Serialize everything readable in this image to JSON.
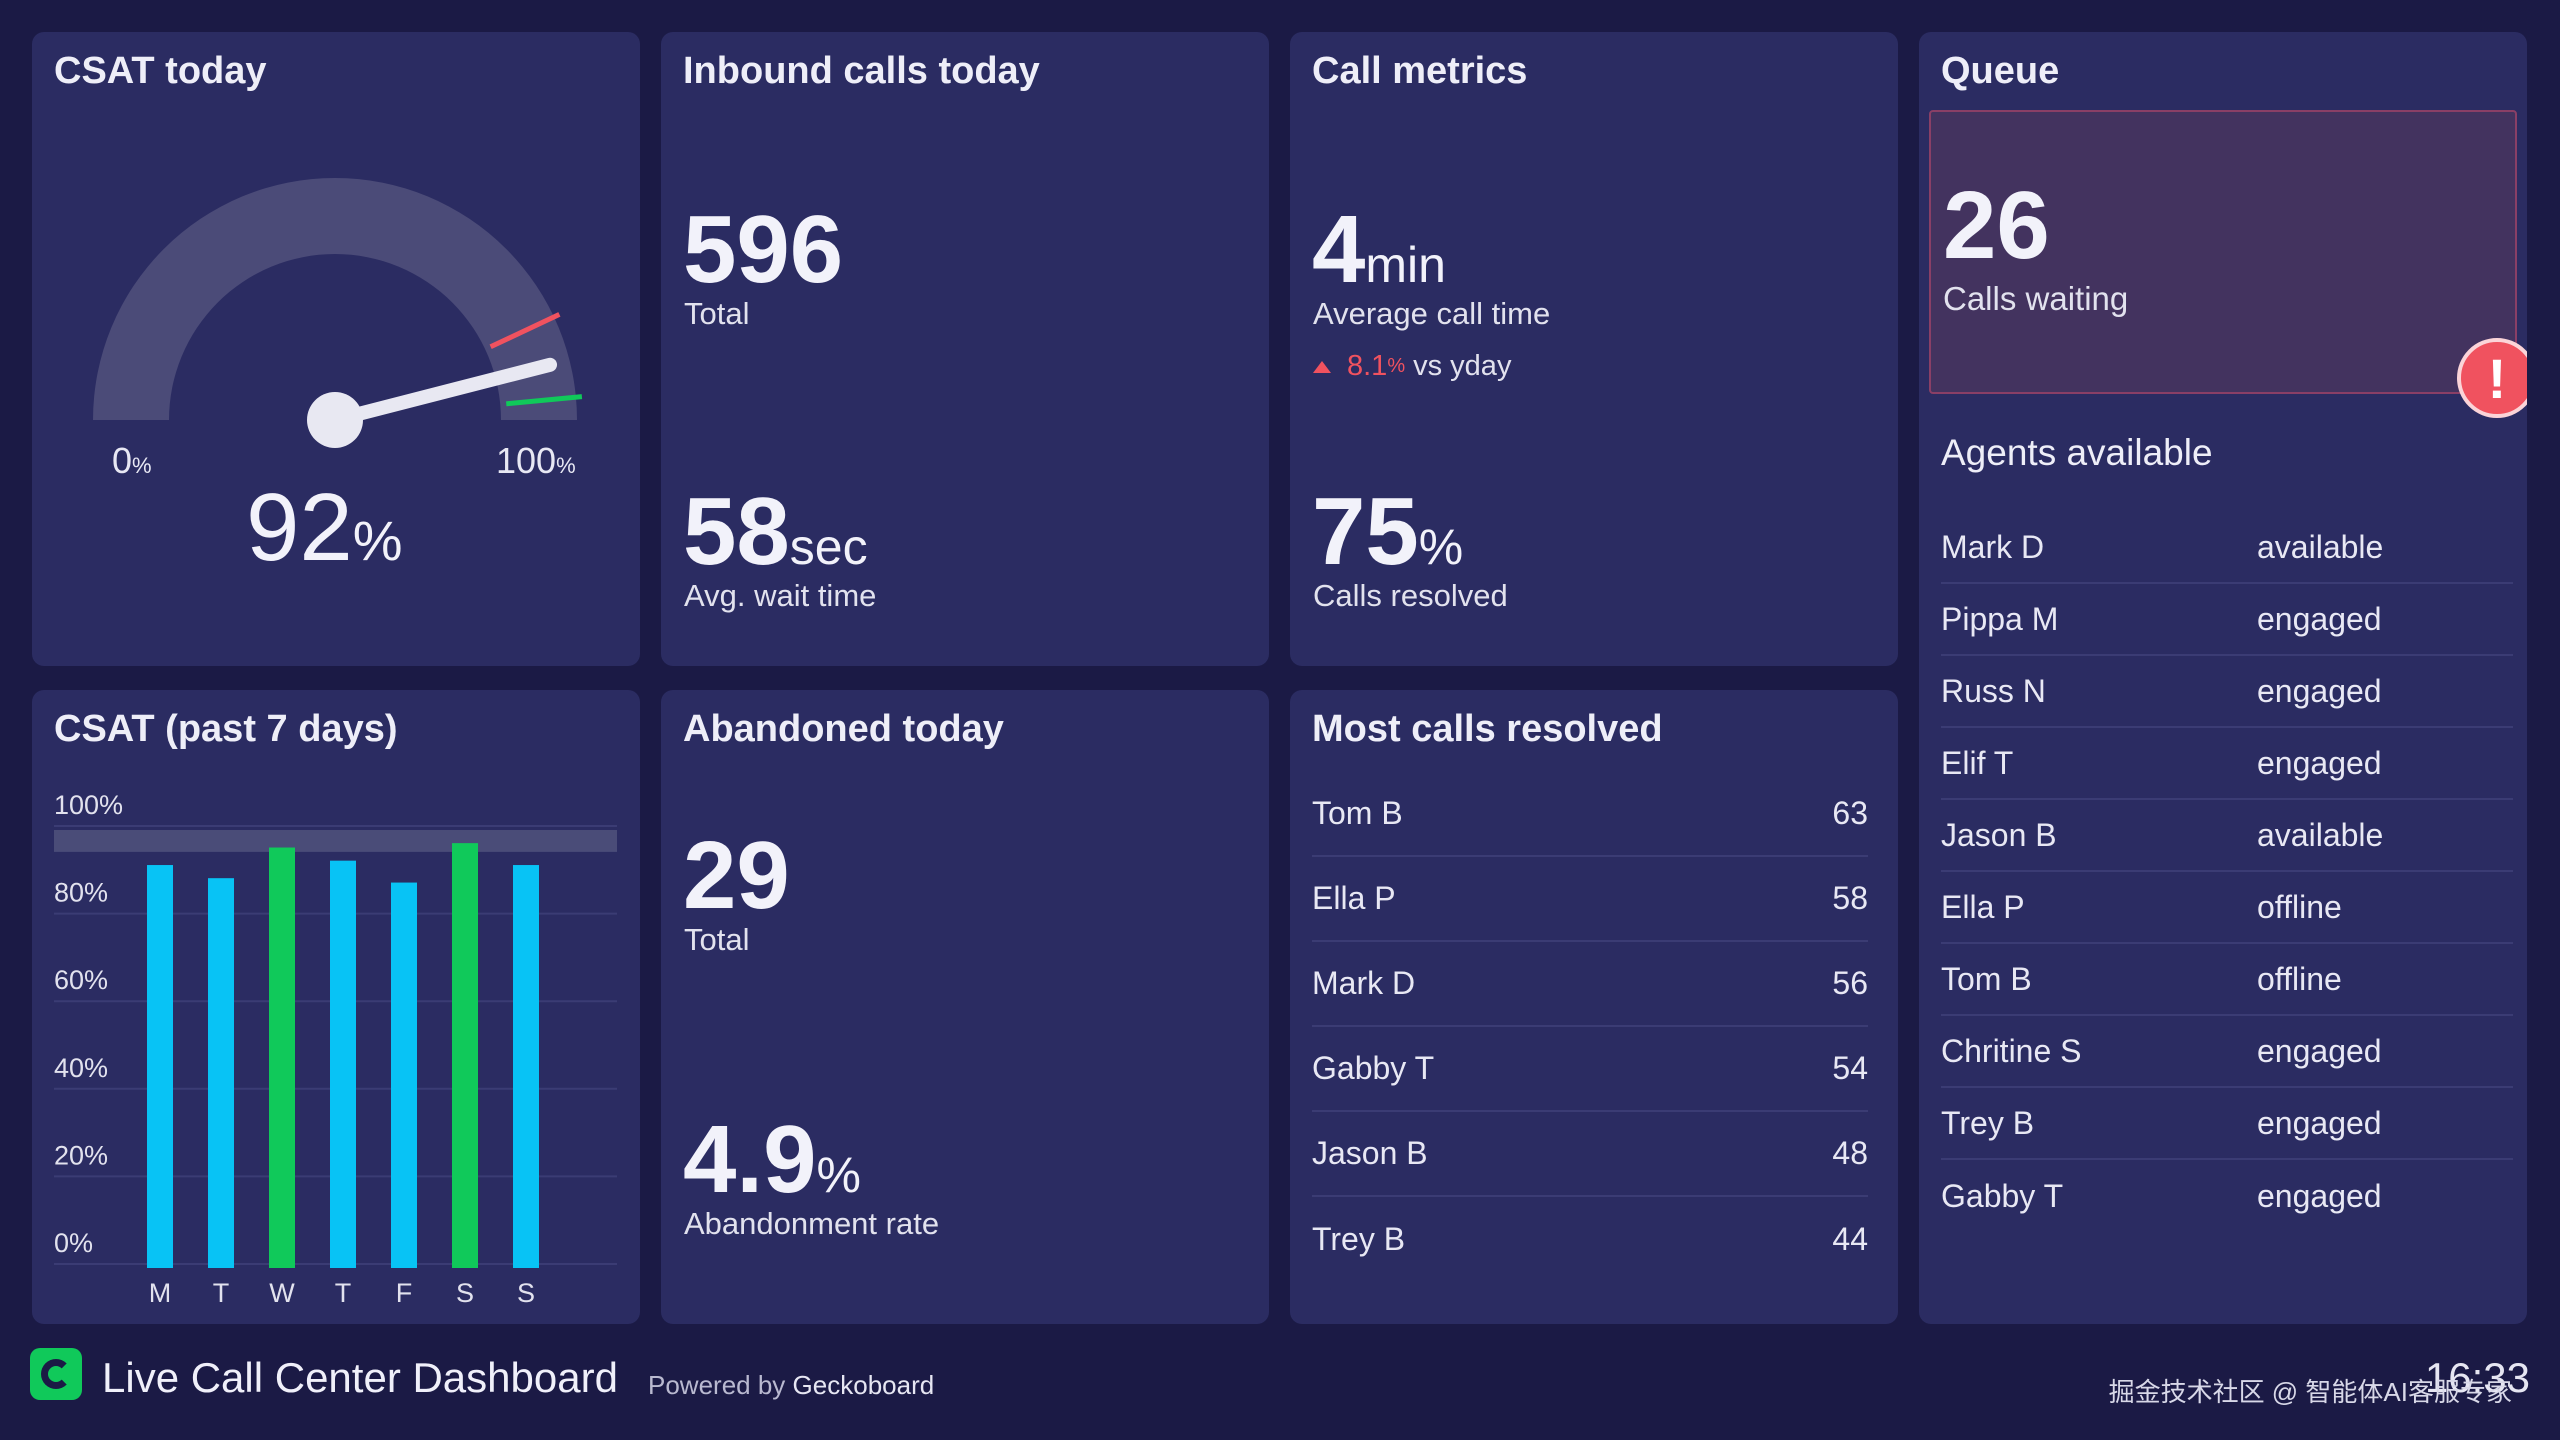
{
  "tiles": {
    "csat_today": {
      "title": "CSAT today",
      "min_label": "0",
      "max_label": "100",
      "pct_sign": "%",
      "value": "92",
      "level": 0.92,
      "colors": {
        "track": "#4b4b78",
        "needle": "#e8e8f2",
        "red_mark": "#f0525f",
        "green_mark": "#10c95a"
      }
    },
    "inbound": {
      "title": "Inbound calls today",
      "total": "596",
      "total_label": "Total",
      "wait": "58",
      "wait_unit": "sec",
      "wait_label": "Avg. wait time"
    },
    "call_metrics": {
      "title": "Call metrics",
      "avg_time": "4",
      "avg_time_unit": "min",
      "avg_time_label": "Average call time",
      "change": "8.1",
      "change_unit": "%",
      "change_label": "vs yday",
      "resolved": "75",
      "resolved_unit": "%",
      "resolved_label": "Calls resolved"
    },
    "queue": {
      "title": "Queue",
      "waiting": "26",
      "waiting_label": "Calls waiting",
      "alert_icon": "!",
      "agents_title": "Agents available",
      "agents": [
        {
          "name": "Mark D",
          "status": "available"
        },
        {
          "name": "Pippa M",
          "status": "engaged"
        },
        {
          "name": "Russ N",
          "status": "engaged"
        },
        {
          "name": "Elif T",
          "status": "engaged"
        },
        {
          "name": "Jason B",
          "status": "available"
        },
        {
          "name": "Ella P",
          "status": "offline"
        },
        {
          "name": "Tom B",
          "status": "offline"
        },
        {
          "name": "Chritine S",
          "status": "engaged"
        },
        {
          "name": "Trey B",
          "status": "engaged"
        },
        {
          "name": "Gabby T",
          "status": "engaged"
        }
      ]
    },
    "csat_week": {
      "title": "CSAT (past 7 days)"
    },
    "abandoned": {
      "title": "Abandoned today",
      "total": "29",
      "total_label": "Total",
      "rate": "4.9",
      "rate_unit": "%",
      "rate_label": "Abandonment rate"
    },
    "most_resolved": {
      "title": "Most calls resolved",
      "rows": [
        {
          "name": "Tom B",
          "value": "63"
        },
        {
          "name": "Ella P",
          "value": "58"
        },
        {
          "name": "Mark D",
          "value": "56"
        },
        {
          "name": "Gabby T",
          "value": "54"
        },
        {
          "name": "Jason B",
          "value": "48"
        },
        {
          "name": "Trey B",
          "value": "44"
        }
      ]
    }
  },
  "chart_data": {
    "type": "bar",
    "categories": [
      "M",
      "T",
      "W",
      "T",
      "F",
      "S",
      "S"
    ],
    "values": [
      92,
      89,
      96,
      93,
      88,
      97,
      92
    ],
    "highlight": [
      false,
      false,
      true,
      false,
      false,
      true,
      false
    ],
    "y_ticks": [
      "0%",
      "20%",
      "40%",
      "60%",
      "80%",
      "100%"
    ],
    "ylim": [
      0,
      100
    ],
    "target_band": [
      95,
      100
    ],
    "colors": {
      "bar": "#08c3f5",
      "bar_high": "#10c95a",
      "band": "#4a4c78"
    }
  },
  "footer": {
    "title": "Live Call Center Dashboard",
    "powered_prefix": "Powered by",
    "powered_brand": "Geckoboard",
    "clock": "16:33",
    "watermark": "掘金技术社区 @ 智能体AI客服专家"
  }
}
